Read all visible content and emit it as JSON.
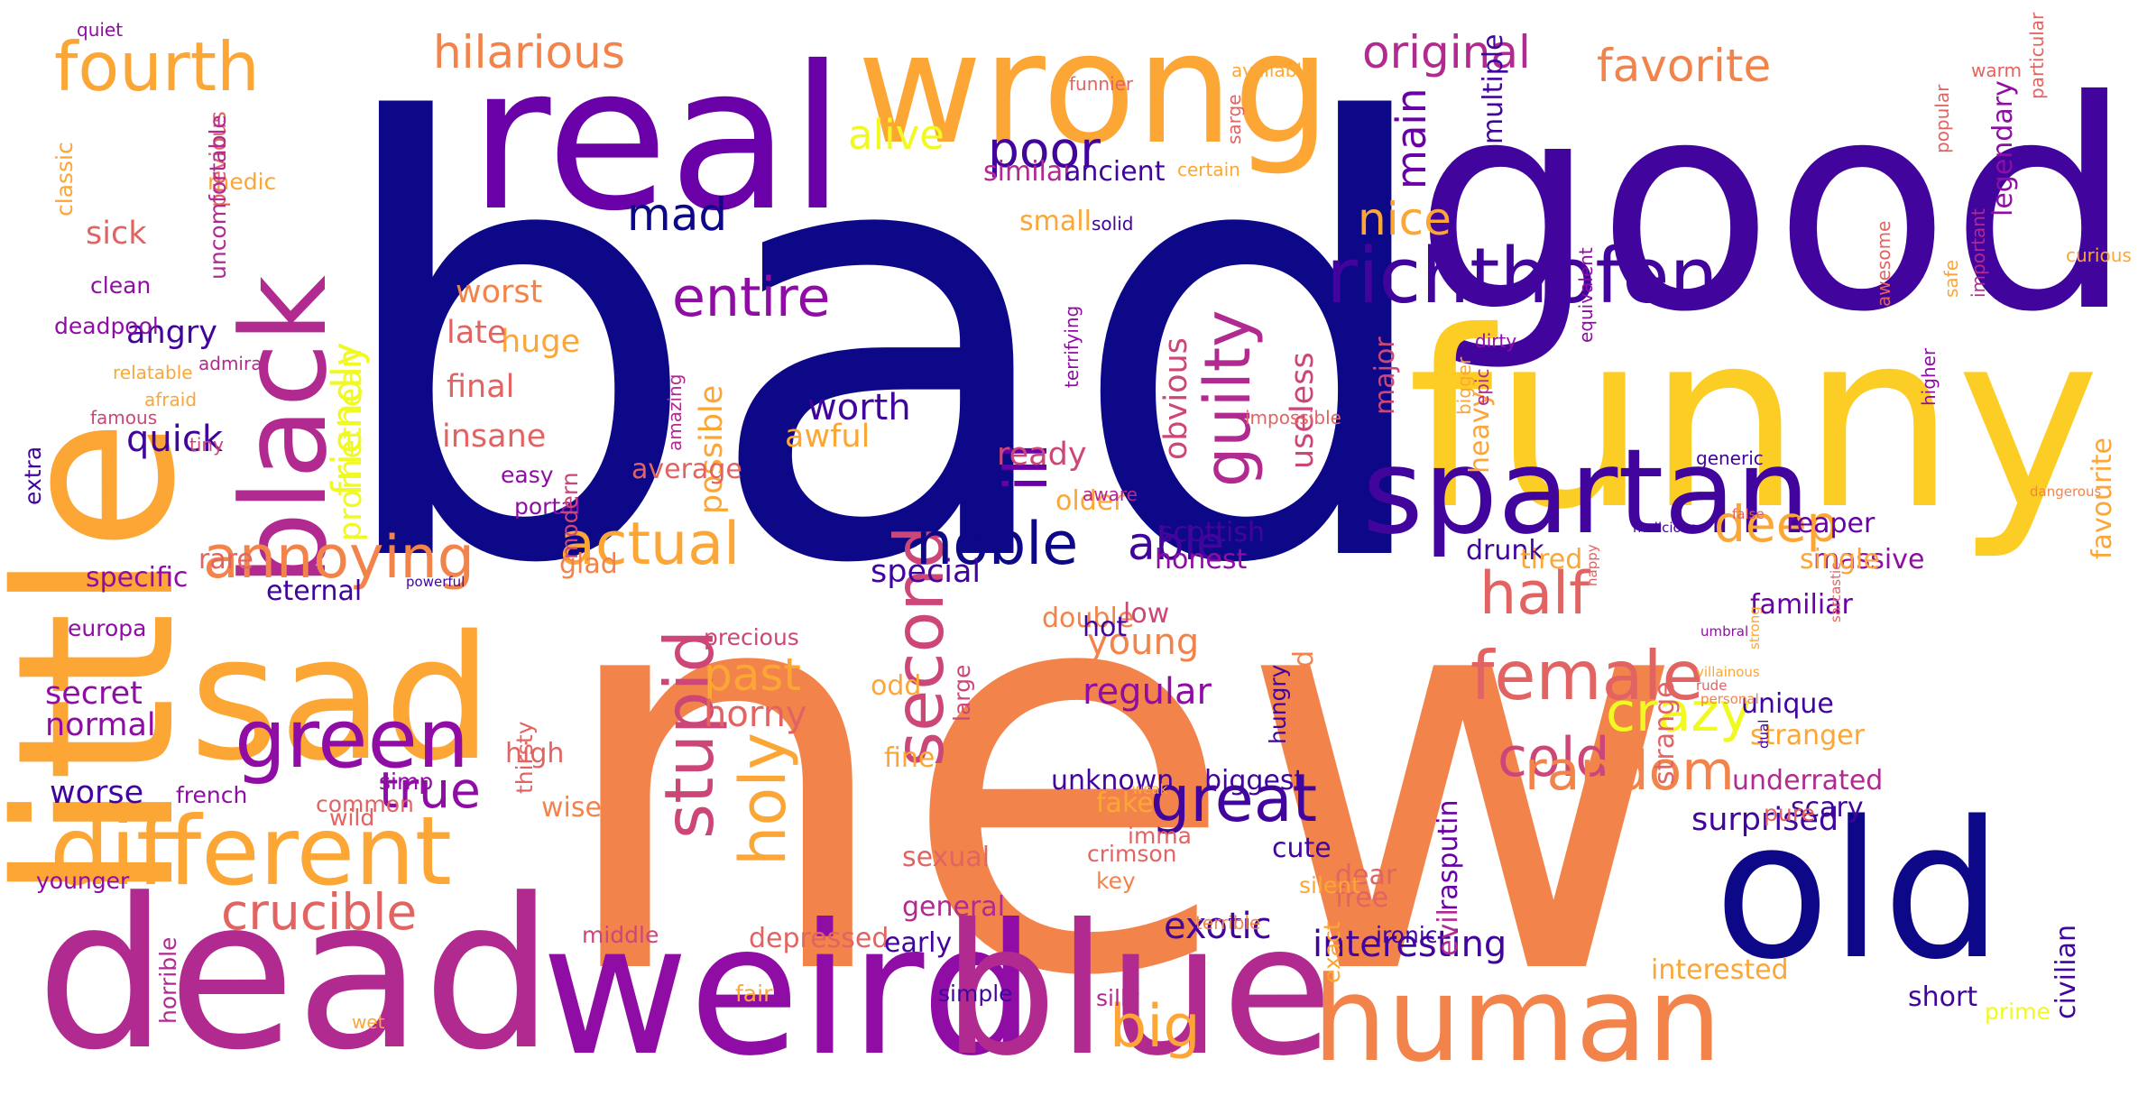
{
  "word_cloud": {
    "palette": {
      "navy": "#0d0887",
      "indigo": "#41049d",
      "violet": "#6a00a8",
      "purple": "#8f0da4",
      "magenta": "#b12a90",
      "pink": "#cc4778",
      "rose": "#e16462",
      "coral": "#f2844b",
      "orange": "#fca636",
      "gold": "#fcce25",
      "yellow": "#f0f921"
    },
    "words": [
      {
        "text": "bad",
        "color": "#0d0887"
      },
      {
        "text": "new",
        "color": "#f2844b"
      },
      {
        "text": "good",
        "color": "#41049d"
      },
      {
        "text": "funny",
        "color": "#fcce25"
      },
      {
        "text": "real",
        "color": "#6a00a8"
      },
      {
        "text": "wrong",
        "color": "#fca636"
      },
      {
        "text": "little",
        "color": "#fca636"
      },
      {
        "text": "dead",
        "color": "#b12a90"
      },
      {
        "text": "sad",
        "color": "#fca636"
      },
      {
        "text": "weird",
        "color": "#8f0da4"
      },
      {
        "text": "blue",
        "color": "#b12a90"
      },
      {
        "text": "old",
        "color": "#0d0887"
      },
      {
        "text": "human",
        "color": "#f2844b"
      },
      {
        "text": "spartan",
        "color": "#41049d"
      },
      {
        "text": "black",
        "color": "#b12a90"
      },
      {
        "text": "different",
        "color": "#fca636"
      },
      {
        "text": "green",
        "color": "#8f0da4"
      },
      {
        "text": "richthofen",
        "color": "#41049d"
      },
      {
        "text": "female",
        "color": "#e16462"
      },
      {
        "text": "fourth",
        "color": "#fca636"
      },
      {
        "text": "stupid",
        "color": "#cc4778"
      },
      {
        "text": "second",
        "color": "#cc4778"
      },
      {
        "text": "annoying",
        "color": "#f2844b"
      },
      {
        "text": "actual",
        "color": "#fca636"
      },
      {
        "text": "holy",
        "color": "#fca636"
      },
      {
        "text": "guilty",
        "color": "#b12a90"
      },
      {
        "text": "great",
        "color": "#41049d"
      },
      {
        "text": "crucible",
        "color": "#e16462"
      },
      {
        "text": "noble",
        "color": "#0d0887"
      },
      {
        "text": "half",
        "color": "#e16462"
      },
      {
        "text": "cold",
        "color": "#cc4778"
      },
      {
        "text": "crazy",
        "color": "#f0f921"
      },
      {
        "text": "random",
        "color": "#f2844b"
      },
      {
        "text": "ill",
        "color": "#6a00a8"
      },
      {
        "text": "big",
        "color": "#fca636"
      },
      {
        "text": "entire",
        "color": "#8f0da4"
      },
      {
        "text": "hilarious",
        "color": "#f2844b"
      },
      {
        "text": "original",
        "color": "#b12a90"
      },
      {
        "text": "favorite",
        "color": "#f2844b"
      },
      {
        "text": "poor",
        "color": "#41049d"
      },
      {
        "text": "true",
        "color": "#8f0da4"
      },
      {
        "text": "deep",
        "color": "#fca636"
      },
      {
        "text": "mad",
        "color": "#0d0887"
      },
      {
        "text": "nice",
        "color": "#fca636"
      },
      {
        "text": "past",
        "color": "#fca636"
      },
      {
        "text": "alive",
        "color": "#f0f921"
      },
      {
        "text": "friendly",
        "color": "#f0f921"
      },
      {
        "text": "able",
        "color": "#41049d"
      },
      {
        "text": "main",
        "color": "#6a00a8"
      },
      {
        "text": "interesting",
        "color": "#41049d"
      },
      {
        "text": "horny",
        "color": "#e16462"
      },
      {
        "text": "regular",
        "color": "#8f0da4"
      },
      {
        "text": "young",
        "color": "#f2844b"
      },
      {
        "text": "worth",
        "color": "#41049d"
      },
      {
        "text": "quick",
        "color": "#41049d"
      },
      {
        "text": "exotic",
        "color": "#41049d"
      },
      {
        "text": "angry",
        "color": "#41049d"
      },
      {
        "text": "worse",
        "color": "#41049d"
      },
      {
        "text": "secret",
        "color": "#8f0da4"
      },
      {
        "text": "normal",
        "color": "#8f0da4"
      },
      {
        "text": "special",
        "color": "#41049d"
      },
      {
        "text": "useless",
        "color": "#cc4778"
      },
      {
        "text": "obvious",
        "color": "#cc4778"
      },
      {
        "text": "possible",
        "color": "#fca636"
      },
      {
        "text": "promethean",
        "color": "#f0f921"
      },
      {
        "text": "sick",
        "color": "#e16462"
      },
      {
        "text": "surprised",
        "color": "#41049d"
      },
      {
        "text": "final",
        "color": "#e16462"
      },
      {
        "text": "insane",
        "color": "#e16462"
      },
      {
        "text": "worst",
        "color": "#f2844b"
      },
      {
        "text": "huge",
        "color": "#fca636"
      },
      {
        "text": "late",
        "color": "#e16462"
      },
      {
        "text": "awful",
        "color": "#fca636"
      },
      {
        "text": "ready",
        "color": "#cc4778"
      },
      {
        "text": "small",
        "color": "#fca636"
      },
      {
        "text": "similar",
        "color": "#b12a90"
      },
      {
        "text": "ancient",
        "color": "#41049d"
      },
      {
        "text": "massive",
        "color": "#8f0da4"
      },
      {
        "text": "honest",
        "color": "#8f0da4"
      },
      {
        "text": "scottish",
        "color": "#41049d"
      },
      {
        "text": "drunk",
        "color": "#41049d"
      },
      {
        "text": "reaper",
        "color": "#6a00a8"
      },
      {
        "text": "single",
        "color": "#fca636"
      },
      {
        "text": "familiar",
        "color": "#6a00a8"
      },
      {
        "text": "favourite",
        "color": "#fca636"
      },
      {
        "text": "legendary",
        "color": "#8f0da4"
      },
      {
        "text": "multiple",
        "color": "#41049d"
      },
      {
        "text": "major",
        "color": "#cc4778"
      },
      {
        "text": "heavy",
        "color": "#fca636"
      },
      {
        "text": "rasputin",
        "color": "#6a00a8"
      },
      {
        "text": "strange",
        "color": "#e16462"
      },
      {
        "text": "tired",
        "color": "#fca636"
      },
      {
        "text": "awkward",
        "color": "#f2844b"
      },
      {
        "text": "high",
        "color": "#e16462"
      },
      {
        "text": "wise",
        "color": "#f2844b"
      },
      {
        "text": "fake",
        "color": "#fca636"
      },
      {
        "text": "unknown",
        "color": "#41049d"
      },
      {
        "text": "biggest",
        "color": "#41049d"
      },
      {
        "text": "cute",
        "color": "#41049d"
      },
      {
        "text": "dear",
        "color": "#e16462"
      },
      {
        "text": "free",
        "color": "#e16462"
      },
      {
        "text": "evil",
        "color": "#b12a90"
      },
      {
        "text": "scary",
        "color": "#41049d"
      },
      {
        "text": "short",
        "color": "#41049d"
      },
      {
        "text": "civilian",
        "color": "#41049d"
      },
      {
        "text": "underrated",
        "color": "#b12a90"
      },
      {
        "text": "stranger",
        "color": "#fca636"
      },
      {
        "text": "unique",
        "color": "#41049d"
      },
      {
        "text": "interested",
        "color": "#fca636"
      },
      {
        "text": "depressed",
        "color": "#e16462"
      },
      {
        "text": "early",
        "color": "#41049d"
      },
      {
        "text": "general",
        "color": "#b12a90"
      },
      {
        "text": "sexual",
        "color": "#e16462"
      },
      {
        "text": "older",
        "color": "#fca636"
      },
      {
        "text": "double",
        "color": "#f2844b"
      },
      {
        "text": "low",
        "color": "#cc4778"
      },
      {
        "text": "hot",
        "color": "#41049d"
      },
      {
        "text": "aware",
        "color": "#b12a90"
      },
      {
        "text": "average",
        "color": "#e16462"
      },
      {
        "text": "fine",
        "color": "#fca636"
      },
      {
        "text": "odd",
        "color": "#fca636"
      },
      {
        "text": "glad",
        "color": "#f2844b"
      },
      {
        "text": "rare",
        "color": "#e16462"
      },
      {
        "text": "eternal",
        "color": "#41049d"
      },
      {
        "text": "specific",
        "color": "#8f0da4"
      },
      {
        "text": "europa",
        "color": "#8f0da4"
      },
      {
        "text": "portal",
        "color": "#8f0da4"
      },
      {
        "text": "easy",
        "color": "#8f0da4"
      },
      {
        "text": "common",
        "color": "#e16462"
      },
      {
        "text": "wild",
        "color": "#e16462"
      },
      {
        "text": "simp",
        "color": "#8f0da4"
      },
      {
        "text": "french",
        "color": "#8f0da4"
      },
      {
        "text": "younger",
        "color": "#8f0da4"
      },
      {
        "text": "horrible",
        "color": "#b12a90"
      },
      {
        "text": "middle",
        "color": "#cc4778"
      },
      {
        "text": "fair",
        "color": "#fca636"
      },
      {
        "text": "simple",
        "color": "#41049d"
      },
      {
        "text": "silly",
        "color": "#b12a90"
      },
      {
        "text": "prime",
        "color": "#f0f921"
      },
      {
        "text": "exact",
        "color": "#fca636"
      },
      {
        "text": "ironic",
        "color": "#41049d"
      },
      {
        "text": "silent",
        "color": "#fca636"
      },
      {
        "text": "pure",
        "color": "#e16462"
      },
      {
        "text": "imma",
        "color": "#e16462"
      },
      {
        "text": "crimson",
        "color": "#e16462"
      },
      {
        "text": "key",
        "color": "#f2844b"
      },
      {
        "text": "terrible",
        "color": "#f2844b"
      },
      {
        "text": "large",
        "color": "#cc4778"
      },
      {
        "text": "hungry",
        "color": "#41049d"
      },
      {
        "text": "precious",
        "color": "#cc4778"
      },
      {
        "text": "modern",
        "color": "#cc4778"
      },
      {
        "text": "thirsty",
        "color": "#e16462"
      },
      {
        "text": "clean",
        "color": "#8f0da4"
      },
      {
        "text": "deadpool",
        "color": "#8f0da4"
      },
      {
        "text": "classic",
        "color": "#fca636"
      },
      {
        "text": "medic",
        "color": "#fca636"
      },
      {
        "text": "previous",
        "color": "#e16462"
      },
      {
        "text": "uncomfortable",
        "color": "#b12a90"
      },
      {
        "text": "extra",
        "color": "#41049d"
      },
      {
        "text": "relatable",
        "color": "#fca636"
      },
      {
        "text": "admiral",
        "color": "#b12a90"
      },
      {
        "text": "afraid",
        "color": "#fca636"
      },
      {
        "text": "tiny",
        "color": "#cc4778"
      },
      {
        "text": "famous",
        "color": "#cc4778"
      },
      {
        "text": "powerful",
        "color": "#41049d"
      },
      {
        "text": "amazing",
        "color": "#b12a90"
      },
      {
        "text": "terrifying",
        "color": "#8f0da4"
      },
      {
        "text": "solid",
        "color": "#41049d"
      },
      {
        "text": "certain",
        "color": "#fca636"
      },
      {
        "text": "sarge",
        "color": "#e16462"
      },
      {
        "text": "available",
        "color": "#fca636"
      },
      {
        "text": "funnier",
        "color": "#e16462"
      },
      {
        "text": "quiet",
        "color": "#8f0da4"
      },
      {
        "text": "dirty",
        "color": "#8f0da4"
      },
      {
        "text": "warm",
        "color": "#e16462"
      },
      {
        "text": "particular",
        "color": "#e16462"
      },
      {
        "text": "curious",
        "color": "#fca636"
      },
      {
        "text": "generic",
        "color": "#41049d"
      },
      {
        "text": "impossible",
        "color": "#e16462"
      },
      {
        "text": "epic",
        "color": "#b12a90"
      },
      {
        "text": "equivalent",
        "color": "#8f0da4"
      },
      {
        "text": "important",
        "color": "#b12a90"
      },
      {
        "text": "bigger",
        "color": "#fca636"
      },
      {
        "text": "higher",
        "color": "#8f0da4"
      },
      {
        "text": "safe",
        "color": "#fca636"
      },
      {
        "text": "popular",
        "color": "#e16462"
      },
      {
        "text": "awesome",
        "color": "#e16462"
      },
      {
        "text": "dangerous",
        "color": "#f2844b"
      },
      {
        "text": "malicious",
        "color": "#41049d"
      },
      {
        "text": "happy",
        "color": "#e16462"
      },
      {
        "text": "personal",
        "color": "#f2844b"
      },
      {
        "text": "false",
        "color": "#e16462"
      },
      {
        "text": "umbral",
        "color": "#8f0da4"
      },
      {
        "text": "rude",
        "color": "#e16462"
      },
      {
        "text": "villainous",
        "color": "#fca636"
      },
      {
        "text": "strong",
        "color": "#fca636"
      },
      {
        "text": "sarcastic",
        "color": "#e16462"
      },
      {
        "text": "dual",
        "color": "#41049d"
      },
      {
        "text": "wet",
        "color": "#fca636"
      },
      {
        "text": "weak",
        "color": "#fca636"
      }
    ]
  }
}
